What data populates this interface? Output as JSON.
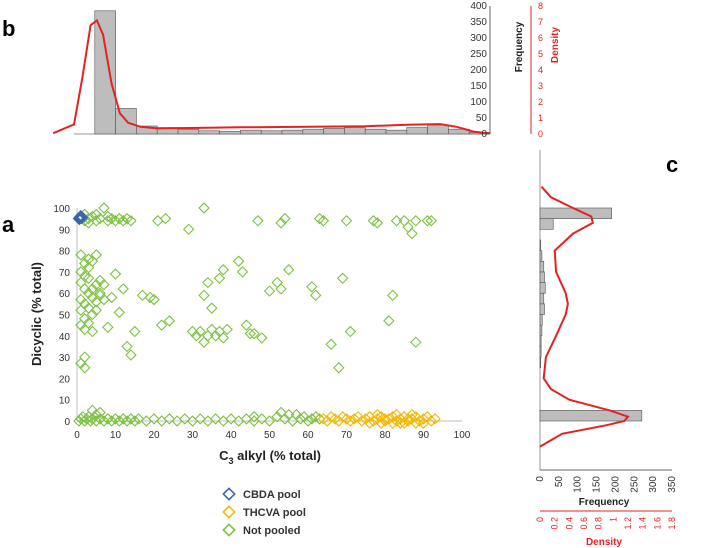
{
  "panel_labels": {
    "a": "a",
    "b": "b",
    "c": "c"
  },
  "colors": {
    "cbda": "#3a66a8",
    "thcva": "#f5b800",
    "not_pooled": "#7cc242",
    "density": "#e32222",
    "bar_fill": "#bdbdbd",
    "bar_stroke": "#555555"
  },
  "legend": [
    {
      "label": "CBDA pool",
      "color": "#3a66a8"
    },
    {
      "label": "THCVA pool",
      "color": "#f5b800"
    },
    {
      "label": "Not pooled",
      "color": "#7cc242"
    }
  ],
  "chart_data": [
    {
      "id": "a",
      "type": "scatter",
      "xlabel_main": "C",
      "xlabel_sub": "3",
      "xlabel_rest": " alkyl (% total)",
      "ylabel": "Dicyclic (% total)",
      "xlim": [
        0,
        100
      ],
      "ylim": [
        0,
        100
      ],
      "xticks": [
        0,
        10,
        20,
        30,
        40,
        50,
        60,
        70,
        80,
        90,
        100
      ],
      "yticks": [
        0,
        10,
        20,
        30,
        40,
        50,
        60,
        70,
        80,
        90,
        100
      ],
      "series": [
        {
          "name": "Not pooled",
          "color": "#7cc242",
          "points": [
            [
              1,
              96
            ],
            [
              2,
              94
            ],
            [
              3,
              95
            ],
            [
              4,
              96
            ],
            [
              5,
              94
            ],
            [
              6,
              95
            ],
            [
              7,
              100
            ],
            [
              8,
              94
            ],
            [
              9,
              95
            ],
            [
              10,
              94
            ],
            [
              11,
              95
            ],
            [
              12,
              94
            ],
            [
              13,
              95
            ],
            [
              14,
              94
            ],
            [
              2,
              97
            ],
            [
              3,
              93
            ],
            [
              5,
              97
            ],
            [
              8,
              96
            ],
            [
              21,
              94
            ],
            [
              23,
              95
            ],
            [
              29,
              90
            ],
            [
              33,
              100
            ],
            [
              47,
              94
            ],
            [
              53,
              93
            ],
            [
              54,
              95
            ],
            [
              63,
              95
            ],
            [
              64,
              94
            ],
            [
              70,
              94
            ],
            [
              77,
              94
            ],
            [
              78,
              93
            ],
            [
              83,
              94
            ],
            [
              85,
              94
            ],
            [
              86,
              91
            ],
            [
              87,
              88
            ],
            [
              88,
              94
            ],
            [
              91,
              94
            ],
            [
              92,
              94
            ],
            [
              1,
              70
            ],
            [
              2,
              68
            ],
            [
              3,
              72
            ],
            [
              1,
              65
            ],
            [
              2,
              62
            ],
            [
              3,
              60
            ],
            [
              4,
              58
            ],
            [
              1,
              57
            ],
            [
              2,
              55
            ],
            [
              3,
              53
            ],
            [
              4,
              50
            ],
            [
              1,
              52
            ],
            [
              2,
              48
            ],
            [
              5,
              64
            ],
            [
              6,
              66
            ],
            [
              3,
              76
            ],
            [
              4,
              75
            ],
            [
              5,
              78
            ],
            [
              2,
              74
            ],
            [
              1,
              78
            ],
            [
              6,
              59
            ],
            [
              7,
              57
            ],
            [
              5,
              52
            ],
            [
              4,
              42
            ],
            [
              3,
              46
            ],
            [
              2,
              30
            ],
            [
              1,
              27
            ],
            [
              2,
              25
            ],
            [
              6,
              60
            ],
            [
              7,
              64
            ],
            [
              3,
              67
            ],
            [
              4,
              62
            ],
            [
              5,
              56
            ],
            [
              1,
              45
            ],
            [
              2,
              43
            ],
            [
              8,
              44
            ],
            [
              9,
              58
            ],
            [
              10,
              69
            ],
            [
              11,
              51
            ],
            [
              12,
              62
            ],
            [
              13,
              35
            ],
            [
              14,
              31
            ],
            [
              15,
              42
            ],
            [
              17,
              59
            ],
            [
              19,
              58
            ],
            [
              20,
              57
            ],
            [
              22,
              45
            ],
            [
              24,
              47
            ],
            [
              30,
              42
            ],
            [
              31,
              40
            ],
            [
              32,
              42
            ],
            [
              33,
              37
            ],
            [
              34,
              40
            ],
            [
              35,
              43
            ],
            [
              36,
              40
            ],
            [
              37,
              42
            ],
            [
              38,
              39
            ],
            [
              39,
              43
            ],
            [
              33,
              59
            ],
            [
              34,
              65
            ],
            [
              35,
              53
            ],
            [
              37,
              67
            ],
            [
              38,
              71
            ],
            [
              42,
              75
            ],
            [
              43,
              70
            ],
            [
              44,
              45
            ],
            [
              45,
              41
            ],
            [
              46,
              41
            ],
            [
              48,
              39
            ],
            [
              50,
              61
            ],
            [
              52,
              65
            ],
            [
              53,
              62
            ],
            [
              55,
              71
            ],
            [
              61,
              63
            ],
            [
              62,
              59
            ],
            [
              66,
              36
            ],
            [
              68,
              25
            ],
            [
              69,
              67
            ],
            [
              71,
              42
            ],
            [
              81,
              47
            ],
            [
              82,
              59
            ],
            [
              88,
              37
            ],
            [
              0.5,
              0
            ],
            [
              1,
              1
            ],
            [
              1.5,
              2
            ],
            [
              2,
              0
            ],
            [
              2.5,
              1
            ],
            [
              3,
              2
            ],
            [
              3.5,
              0
            ],
            [
              4,
              1
            ],
            [
              5,
              0
            ],
            [
              6,
              1
            ],
            [
              7,
              0
            ],
            [
              8,
              1
            ],
            [
              9,
              0
            ],
            [
              10,
              1
            ],
            [
              11,
              0
            ],
            [
              12,
              1
            ],
            [
              13,
              0
            ],
            [
              14,
              1
            ],
            [
              15,
              0
            ],
            [
              16,
              1
            ],
            [
              18,
              0
            ],
            [
              20,
              1
            ],
            [
              22,
              0
            ],
            [
              24,
              1
            ],
            [
              26,
              0
            ],
            [
              28,
              1
            ],
            [
              30,
              0
            ],
            [
              32,
              1
            ],
            [
              34,
              0
            ],
            [
              36,
              1
            ],
            [
              38,
              0
            ],
            [
              40,
              1
            ],
            [
              42,
              0
            ],
            [
              44,
              1
            ],
            [
              46,
              0
            ],
            [
              48,
              1
            ],
            [
              50,
              0
            ],
            [
              52,
              2
            ],
            [
              54,
              1
            ],
            [
              56,
              0
            ],
            [
              57,
              3
            ],
            [
              58,
              1
            ],
            [
              59,
              2
            ],
            [
              60,
              0
            ],
            [
              61,
              1
            ],
            [
              62,
              2
            ],
            [
              63,
              1
            ],
            [
              55,
              3
            ],
            [
              53,
              4
            ],
            [
              46,
              2
            ],
            [
              5,
              3
            ],
            [
              6,
              4
            ],
            [
              4,
              5
            ]
          ]
        },
        {
          "name": "THCVA pool",
          "color": "#f5b800",
          "points": [
            [
              64,
              1
            ],
            [
              65,
              0
            ],
            [
              66,
              2
            ],
            [
              67,
              1
            ],
            [
              68,
              0
            ],
            [
              69,
              2
            ],
            [
              70,
              1
            ],
            [
              71,
              0
            ],
            [
              72,
              1
            ],
            [
              73,
              2
            ],
            [
              74,
              0
            ],
            [
              75,
              1
            ],
            [
              76,
              2
            ],
            [
              77,
              0
            ],
            [
              78,
              1
            ],
            [
              79,
              2
            ],
            [
              80,
              0
            ],
            [
              81,
              1
            ],
            [
              82,
              2
            ],
            [
              83,
              0
            ],
            [
              84,
              1
            ],
            [
              85,
              2
            ],
            [
              86,
              0
            ],
            [
              87,
              1
            ],
            [
              88,
              2
            ],
            [
              89,
              0
            ],
            [
              90,
              1
            ],
            [
              91,
              2
            ],
            [
              92,
              0
            ],
            [
              93,
              1
            ],
            [
              76,
              -1
            ],
            [
              79,
              -1
            ],
            [
              82,
              -1
            ],
            [
              85,
              -1
            ],
            [
              88,
              -1
            ],
            [
              78,
              3
            ],
            [
              83,
              3
            ],
            [
              87,
              3
            ],
            [
              90,
              -1
            ],
            [
              80,
              1
            ],
            [
              86,
              1
            ],
            [
              84,
              -1
            ]
          ]
        },
        {
          "name": "CBDA pool",
          "color": "#3a66a8",
          "points": [
            [
              0.8,
              95.5
            ],
            [
              1.0,
              96
            ],
            [
              0.6,
              95
            ],
            [
              1.2,
              95.5
            ]
          ]
        }
      ]
    },
    {
      "id": "b",
      "type": "bar",
      "description": "Histogram of C3 alkyl (% total) with density curve",
      "bin_width": 5,
      "bin_starts": [
        0,
        5,
        10,
        15,
        20,
        25,
        30,
        35,
        40,
        45,
        50,
        55,
        60,
        65,
        70,
        75,
        80,
        85,
        90,
        95
      ],
      "values": [
        0,
        385,
        80,
        25,
        20,
        15,
        10,
        8,
        12,
        10,
        12,
        14,
        18,
        20,
        15,
        12,
        20,
        28,
        15,
        5
      ],
      "density_points": [
        [
          -5,
          0.05
        ],
        [
          0,
          0.6
        ],
        [
          2,
          3.5
        ],
        [
          4,
          6.8
        ],
        [
          5.5,
          7.1
        ],
        [
          7,
          6.2
        ],
        [
          9,
          3.2
        ],
        [
          11,
          1.3
        ],
        [
          13,
          0.7
        ],
        [
          16,
          0.45
        ],
        [
          20,
          0.35
        ],
        [
          30,
          0.38
        ],
        [
          40,
          0.42
        ],
        [
          50,
          0.44
        ],
        [
          60,
          0.46
        ],
        [
          70,
          0.48
        ],
        [
          80,
          0.58
        ],
        [
          88,
          0.62
        ],
        [
          92,
          0.45
        ],
        [
          96,
          0.15
        ],
        [
          100,
          0.03
        ]
      ],
      "ylabel_left": "Frequency",
      "ylabel_right": "Density",
      "ylim_freq": [
        0,
        400
      ],
      "ylim_density": [
        0,
        8
      ],
      "freq_ticks": [
        0,
        50,
        100,
        150,
        200,
        250,
        300,
        350,
        400
      ],
      "density_ticks": [
        0,
        1,
        2,
        3,
        4,
        5,
        6,
        7,
        8
      ]
    },
    {
      "id": "c",
      "type": "bar",
      "orientation": "horizontal",
      "description": "Histogram of Dicyclic (% total) with density curve",
      "bin_width": 5,
      "bin_starts": [
        0,
        5,
        10,
        15,
        20,
        25,
        30,
        35,
        40,
        45,
        50,
        55,
        60,
        65,
        70,
        75,
        80,
        85,
        90,
        95
      ],
      "values": [
        270,
        0,
        0,
        0,
        0,
        2,
        3,
        3,
        5,
        6,
        12,
        10,
        14,
        12,
        10,
        5,
        2,
        0,
        35,
        190
      ],
      "density_points": [
        [
          -12,
          0
        ],
        [
          -6,
          0.3
        ],
        [
          -2,
          0.9
        ],
        [
          0,
          1.15
        ],
        [
          2,
          1.2
        ],
        [
          5,
          0.95
        ],
        [
          10,
          0.4
        ],
        [
          15,
          0.15
        ],
        [
          20,
          0.05
        ],
        [
          30,
          0.08
        ],
        [
          40,
          0.22
        ],
        [
          50,
          0.35
        ],
        [
          55,
          0.38
        ],
        [
          60,
          0.35
        ],
        [
          70,
          0.22
        ],
        [
          80,
          0.2
        ],
        [
          88,
          0.45
        ],
        [
          93,
          0.72
        ],
        [
          96,
          0.7
        ],
        [
          100,
          0.45
        ],
        [
          105,
          0.15
        ],
        [
          110,
          0.02
        ]
      ],
      "xlabel_freq": "Frequency",
      "xlabel_density": "Density",
      "xlim_freq": [
        0,
        350
      ],
      "xlim_density": [
        0,
        1.8
      ],
      "freq_ticks": [
        0,
        50,
        100,
        150,
        200,
        250,
        300,
        350
      ],
      "density_ticks": [
        0,
        0.2,
        0.4,
        0.6,
        0.8,
        1,
        1.2,
        1.4,
        1.6,
        1.8
      ]
    }
  ]
}
